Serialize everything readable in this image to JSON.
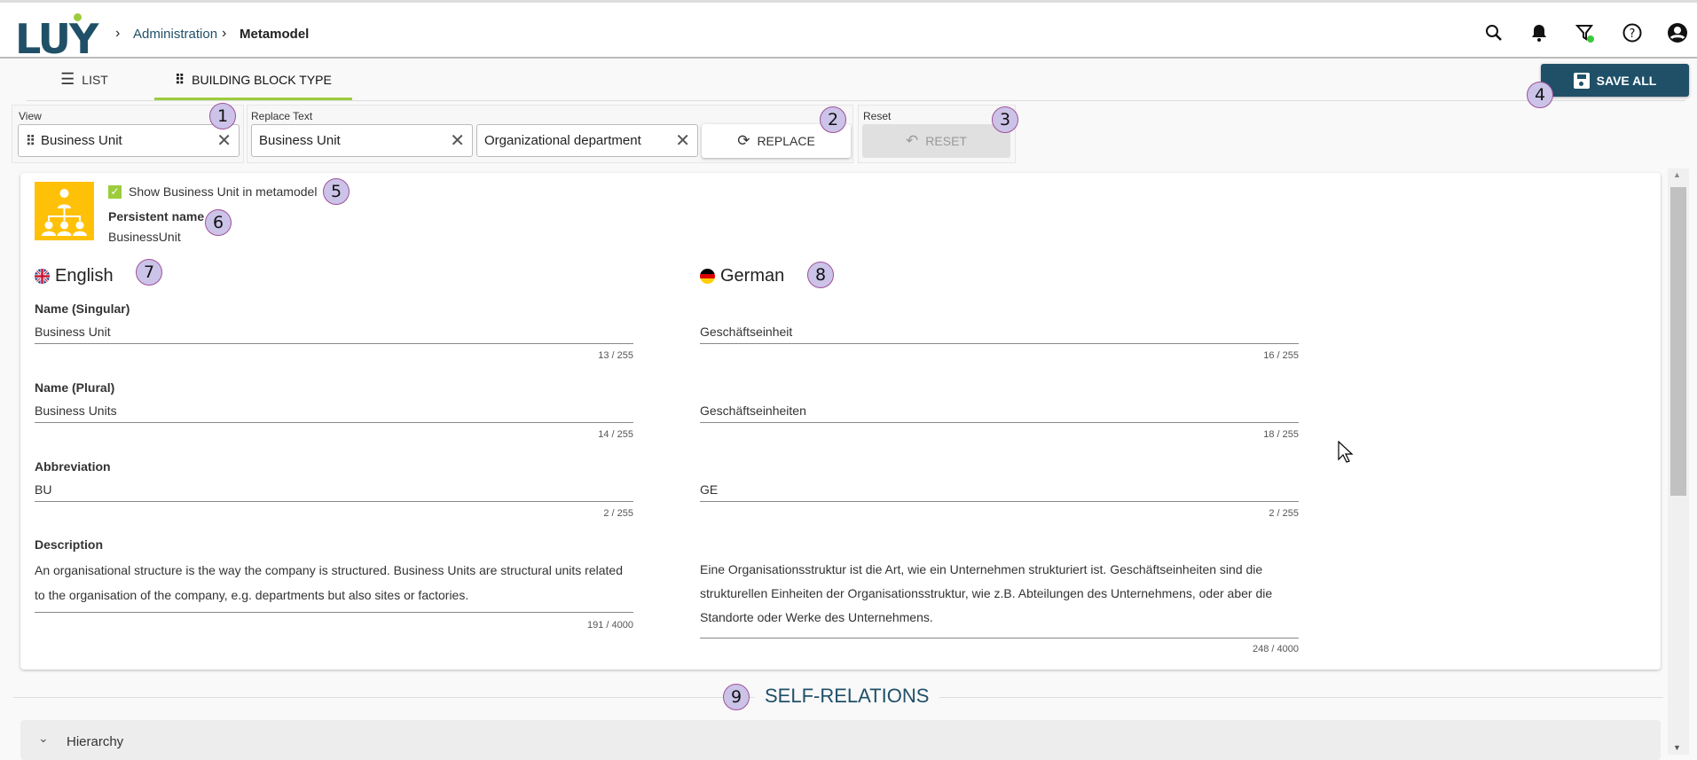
{
  "header": {
    "logo": "LUY",
    "breadcrumb": [
      {
        "label": "Administration"
      },
      {
        "label": "Metamodel"
      }
    ],
    "icons": [
      "search-icon",
      "bell-icon",
      "filter-icon",
      "help-icon",
      "account-icon"
    ]
  },
  "tabs": [
    {
      "label": "LIST",
      "icon": "list-icon"
    },
    {
      "label": "BUILDING BLOCK TYPE",
      "icon": "grid-icon",
      "active": true
    }
  ],
  "save_all": "SAVE ALL",
  "toolbar": {
    "view_label": "View",
    "view_value": "Business Unit",
    "replace_label": "Replace Text",
    "replace_from": "Business Unit",
    "replace_to": "Organizational department",
    "replace_button": "REPLACE",
    "reset_label": "Reset",
    "reset_button": "RESET"
  },
  "card": {
    "show_label": "Show Business Unit in metamodel",
    "show_checked": true,
    "persistent_label": "Persistent name",
    "persistent_value": "BusinessUnit",
    "english": {
      "title": "English",
      "name_singular_label": "Name (Singular)",
      "name_singular": "Business Unit",
      "name_singular_count": "13 / 255",
      "name_plural_label": "Name (Plural)",
      "name_plural": "Business Units",
      "name_plural_count": "14 / 255",
      "abbr_label": "Abbreviation",
      "abbr": "BU",
      "abbr_count": "2 / 255",
      "desc_label": "Description",
      "desc": "An organisational structure is the way the company is structured. Business Units are structural units related to the organisation of the company, e.g. departments but also sites or factories.",
      "desc_count": "191 / 4000"
    },
    "german": {
      "title": "German",
      "name_singular": "Geschäftseinheit",
      "name_singular_count": "16 / 255",
      "name_plural": "Geschäftseinheiten",
      "name_plural_count": "18 / 255",
      "abbr": "GE",
      "abbr_count": "2 / 255",
      "desc": "Eine Organisationsstruktur ist die Art, wie ein Unternehmen strukturiert ist. Geschäftseinheiten sind die strukturellen Einheiten der Organisationsstruktur, wie z.B. Abteilungen des Unternehmens, oder aber die Standorte oder Werke des Unternehmens.",
      "desc_count": "248 / 4000"
    }
  },
  "self_relations": {
    "title": "SELF-RELATIONS",
    "items": [
      {
        "label": "Hierarchy"
      }
    ]
  },
  "badges": [
    "1",
    "2",
    "3",
    "4",
    "5",
    "6",
    "7",
    "8",
    "9"
  ],
  "colors": {
    "brand": "#1f5068",
    "accent": "#9ccc3c",
    "icon_bg": "#ffc107",
    "badge": "#cbc3e8"
  }
}
